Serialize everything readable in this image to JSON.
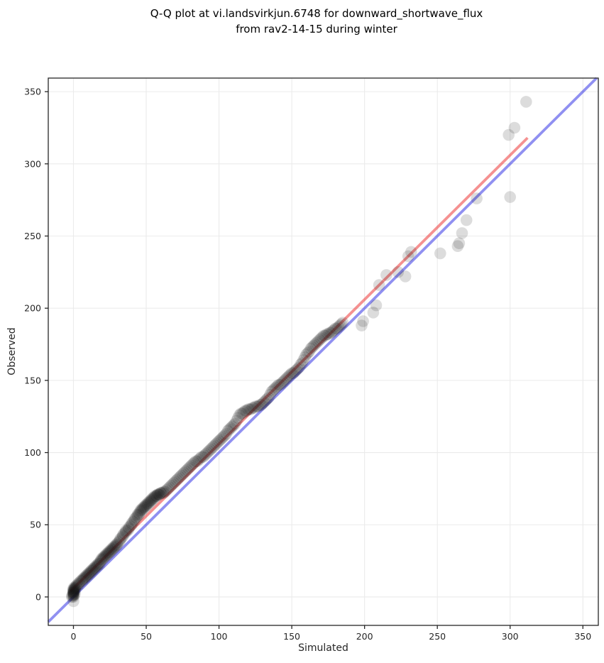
{
  "title": {
    "line1": "Q-Q plot at vi.landsvirkjun.6748 for downward_shortwave_flux",
    "line2": "from rav2-14-15 during winter"
  },
  "chart_data": {
    "type": "scatter",
    "title": "Q-Q plot at vi.landsvirkjun.6748 for downward_shortwave_flux from rav2-14-15 during winter",
    "xlabel": "Simulated",
    "ylabel": "Observed",
    "xlim": [
      -17.3,
      360.6
    ],
    "ylim": [
      -19.7,
      359.4
    ],
    "xticks": [
      0,
      50,
      100,
      150,
      200,
      250,
      300,
      350
    ],
    "yticks": [
      0,
      50,
      100,
      150,
      200,
      250,
      300,
      350
    ],
    "grid": true,
    "grid_color": "#ebebeb",
    "legend": "none",
    "marker": {
      "radius": 8.3,
      "color": "#141414",
      "opacity": 0.15
    },
    "identity_line": {
      "name": "identity-line-y-equals-x",
      "color": "#1414e1",
      "opacity": 0.47,
      "width": 3.8,
      "x": [
        -17.3,
        359.4
      ],
      "y": [
        -17.3,
        359.4
      ]
    },
    "fit_line": {
      "name": "fit-line",
      "color": "#eb2d2d",
      "opacity": 0.52,
      "width": 3.8,
      "x": [
        -2,
        312
      ],
      "y": [
        4,
        318
      ]
    },
    "points": [
      [
        0,
        -3
      ],
      [
        -1,
        0
      ],
      [
        0,
        0
      ],
      [
        -1,
        1
      ],
      [
        0,
        1
      ],
      [
        0,
        1
      ],
      [
        0,
        2
      ],
      [
        0,
        2
      ],
      [
        1,
        2
      ],
      [
        0,
        3
      ],
      [
        0,
        3
      ],
      [
        0,
        3
      ],
      [
        0,
        4
      ],
      [
        0,
        4
      ],
      [
        1,
        4
      ],
      [
        0,
        5
      ],
      [
        0,
        5
      ],
      [
        1,
        5
      ],
      [
        0,
        6
      ],
      [
        1,
        6
      ],
      [
        1,
        6
      ],
      [
        1,
        7
      ],
      [
        2,
        7
      ],
      [
        2,
        8
      ],
      [
        3,
        8
      ],
      [
        3,
        9
      ],
      [
        4,
        9
      ],
      [
        4,
        10
      ],
      [
        5,
        11
      ],
      [
        6,
        11
      ],
      [
        6,
        12
      ],
      [
        7,
        12
      ],
      [
        7,
        13
      ],
      [
        8,
        13
      ],
      [
        8,
        14
      ],
      [
        9,
        14
      ],
      [
        9,
        15
      ],
      [
        10,
        15
      ],
      [
        10,
        16
      ],
      [
        11,
        16
      ],
      [
        11,
        17
      ],
      [
        12,
        17
      ],
      [
        12,
        18
      ],
      [
        13,
        18
      ],
      [
        13,
        19
      ],
      [
        14,
        19
      ],
      [
        14,
        20
      ],
      [
        15,
        20
      ],
      [
        15,
        21
      ],
      [
        16,
        21
      ],
      [
        16,
        22
      ],
      [
        17,
        22
      ],
      [
        17,
        23
      ],
      [
        18,
        23
      ],
      [
        18,
        24
      ],
      [
        19,
        25
      ],
      [
        19,
        26
      ],
      [
        20,
        26
      ],
      [
        20,
        27
      ],
      [
        21,
        27
      ],
      [
        21,
        28
      ],
      [
        22,
        28
      ],
      [
        22,
        29
      ],
      [
        23,
        29
      ],
      [
        23,
        30
      ],
      [
        24,
        30
      ],
      [
        24,
        31
      ],
      [
        25,
        31
      ],
      [
        25,
        32
      ],
      [
        26,
        32
      ],
      [
        26,
        33
      ],
      [
        27,
        33
      ],
      [
        27,
        34
      ],
      [
        28,
        34
      ],
      [
        28,
        35
      ],
      [
        29,
        35
      ],
      [
        29,
        36
      ],
      [
        30,
        36
      ],
      [
        30,
        37
      ],
      [
        31,
        38
      ],
      [
        32,
        39
      ],
      [
        32,
        40
      ],
      [
        33,
        41
      ],
      [
        34,
        42
      ],
      [
        34,
        43
      ],
      [
        35,
        44
      ],
      [
        36,
        45
      ],
      [
        36,
        46
      ],
      [
        37,
        46
      ],
      [
        38,
        47
      ],
      [
        38,
        48
      ],
      [
        39,
        49
      ],
      [
        40,
        50
      ],
      [
        40,
        51
      ],
      [
        41,
        52
      ],
      [
        42,
        53
      ],
      [
        42,
        54
      ],
      [
        43,
        55
      ],
      [
        44,
        56
      ],
      [
        44,
        57
      ],
      [
        45,
        57
      ],
      [
        45,
        58
      ],
      [
        46,
        59
      ],
      [
        46,
        60
      ],
      [
        47,
        60
      ],
      [
        47,
        61
      ],
      [
        48,
        61
      ],
      [
        48,
        62
      ],
      [
        49,
        62
      ],
      [
        49,
        63
      ],
      [
        50,
        63
      ],
      [
        50,
        64
      ],
      [
        51,
        64
      ],
      [
        51,
        65
      ],
      [
        52,
        65
      ],
      [
        52,
        66
      ],
      [
        53,
        66
      ],
      [
        53,
        67
      ],
      [
        54,
        67
      ],
      [
        54,
        68
      ],
      [
        55,
        68
      ],
      [
        55,
        69
      ],
      [
        56,
        69
      ],
      [
        56,
        70
      ],
      [
        57,
        70
      ],
      [
        57,
        70
      ],
      [
        58,
        71
      ],
      [
        58,
        71
      ],
      [
        59,
        71
      ],
      [
        59,
        71
      ],
      [
        60,
        72
      ],
      [
        60,
        72
      ],
      [
        61,
        72
      ],
      [
        62,
        72
      ],
      [
        62,
        73
      ],
      [
        63,
        73
      ],
      [
        64,
        74
      ],
      [
        65,
        75
      ],
      [
        66,
        76
      ],
      [
        67,
        77
      ],
      [
        68,
        78
      ],
      [
        69,
        79
      ],
      [
        70,
        80
      ],
      [
        71,
        81
      ],
      [
        72,
        82
      ],
      [
        73,
        83
      ],
      [
        74,
        84
      ],
      [
        75,
        85
      ],
      [
        76,
        86
      ],
      [
        77,
        87
      ],
      [
        78,
        88
      ],
      [
        79,
        89
      ],
      [
        80,
        90
      ],
      [
        81,
        91
      ],
      [
        82,
        92
      ],
      [
        83,
        93
      ],
      [
        84,
        94
      ],
      [
        85,
        94
      ],
      [
        86,
        95
      ],
      [
        87,
        96
      ],
      [
        88,
        97
      ],
      [
        89,
        97
      ],
      [
        90,
        98
      ],
      [
        91,
        99
      ],
      [
        92,
        100
      ],
      [
        93,
        101
      ],
      [
        94,
        102
      ],
      [
        95,
        103
      ],
      [
        96,
        104
      ],
      [
        97,
        105
      ],
      [
        98,
        106
      ],
      [
        99,
        107
      ],
      [
        100,
        108
      ],
      [
        101,
        109
      ],
      [
        102,
        110
      ],
      [
        103,
        111
      ],
      [
        104,
        112
      ],
      [
        105,
        113
      ],
      [
        106,
        115
      ],
      [
        107,
        116
      ],
      [
        108,
        117
      ],
      [
        109,
        118
      ],
      [
        110,
        119
      ],
      [
        111,
        120
      ],
      [
        112,
        122
      ],
      [
        113,
        124
      ],
      [
        114,
        126
      ],
      [
        115,
        127
      ],
      [
        116,
        127
      ],
      [
        117,
        128
      ],
      [
        118,
        129
      ],
      [
        119,
        129
      ],
      [
        120,
        130
      ],
      [
        121,
        130
      ],
      [
        122,
        130
      ],
      [
        123,
        131
      ],
      [
        124,
        131
      ],
      [
        125,
        132
      ],
      [
        126,
        132
      ],
      [
        127,
        132
      ],
      [
        128,
        133
      ],
      [
        129,
        133
      ],
      [
        130,
        134
      ],
      [
        131,
        135
      ],
      [
        132,
        136
      ],
      [
        133,
        137
      ],
      [
        134,
        138
      ],
      [
        135,
        140
      ],
      [
        136,
        142
      ],
      [
        137,
        143
      ],
      [
        138,
        144
      ],
      [
        139,
        145
      ],
      [
        140,
        146
      ],
      [
        141,
        147
      ],
      [
        142,
        147
      ],
      [
        143,
        148
      ],
      [
        144,
        149
      ],
      [
        145,
        150
      ],
      [
        146,
        151
      ],
      [
        147,
        152
      ],
      [
        148,
        153
      ],
      [
        149,
        154
      ],
      [
        150,
        155
      ],
      [
        151,
        155
      ],
      [
        152,
        156
      ],
      [
        153,
        157
      ],
      [
        154,
        158
      ],
      [
        155,
        159
      ],
      [
        156,
        161
      ],
      [
        157,
        162
      ],
      [
        158,
        164
      ],
      [
        159,
        166
      ],
      [
        160,
        168
      ],
      [
        161,
        169
      ],
      [
        162,
        170
      ],
      [
        163,
        172
      ],
      [
        164,
        173
      ],
      [
        165,
        174
      ],
      [
        166,
        175
      ],
      [
        167,
        176
      ],
      [
        168,
        177
      ],
      [
        169,
        178
      ],
      [
        170,
        179
      ],
      [
        171,
        180
      ],
      [
        172,
        181
      ],
      [
        173,
        181
      ],
      [
        174,
        182
      ],
      [
        175,
        182
      ],
      [
        176,
        183
      ],
      [
        177,
        183
      ],
      [
        178,
        184
      ],
      [
        179,
        185
      ],
      [
        180,
        186
      ],
      [
        181,
        186
      ],
      [
        182,
        187
      ],
      [
        183,
        188
      ],
      [
        184,
        189
      ],
      [
        185,
        190
      ],
      [
        198,
        188
      ],
      [
        199,
        191
      ],
      [
        206,
        197
      ],
      [
        208,
        202
      ],
      [
        210,
        216
      ],
      [
        215,
        223
      ],
      [
        223,
        225
      ],
      [
        228,
        222
      ],
      [
        230,
        236
      ],
      [
        232,
        239
      ],
      [
        252,
        238
      ],
      [
        264,
        243
      ],
      [
        265,
        245
      ],
      [
        267,
        252
      ],
      [
        270,
        261
      ],
      [
        277,
        276
      ],
      [
        299,
        320
      ],
      [
        300,
        277
      ],
      [
        303,
        325
      ],
      [
        311,
        343
      ]
    ]
  }
}
